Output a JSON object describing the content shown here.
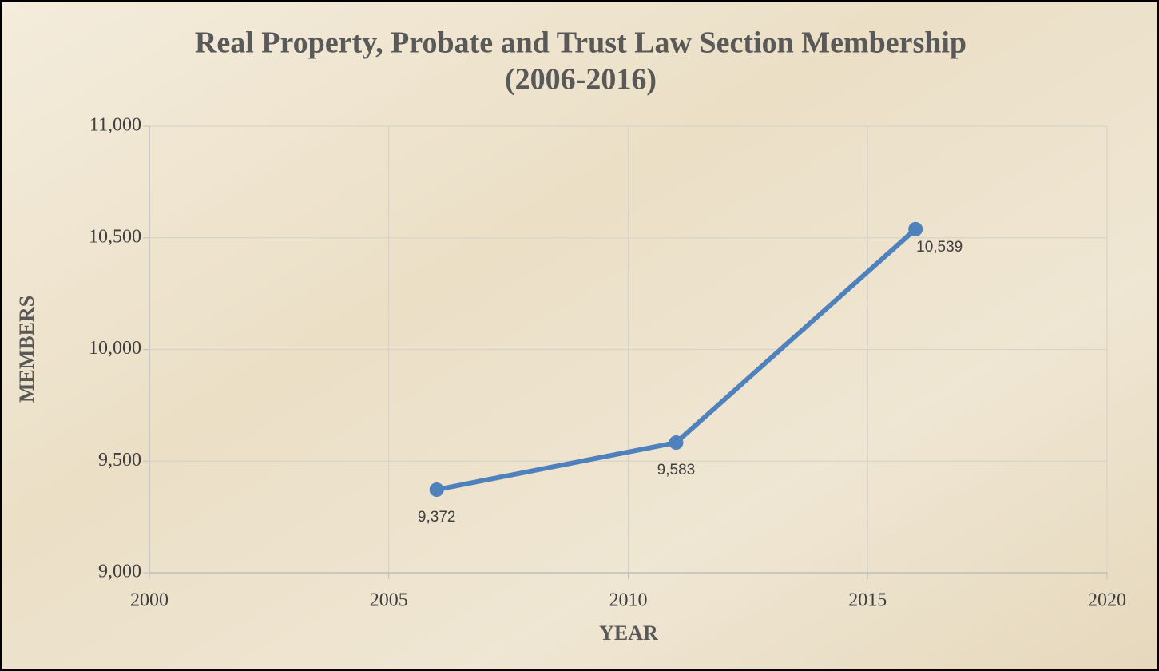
{
  "chart_data": {
    "type": "line",
    "title": [
      "Real Property, Probate and Trust Law Section Membership",
      "(2006-2016)"
    ],
    "x_label": "YEAR",
    "y_label": "MEMBERS",
    "x": [
      2006,
      2011,
      2016
    ],
    "values": [
      9372,
      9583,
      10539
    ],
    "value_labels": [
      "9,372",
      "9,583",
      "10,539"
    ],
    "color": "#4f81bd",
    "xlim": [
      2000,
      2020
    ],
    "xticks": [
      2000,
      2005,
      2010,
      2015,
      2020
    ],
    "ylim": [
      9000,
      11000
    ],
    "yticks": [
      {
        "value": 9000,
        "label": "9,000"
      },
      {
        "value": 9500,
        "label": "9,500"
      },
      {
        "value": 10000,
        "label": "10,000"
      },
      {
        "value": 10500,
        "label": "10,500"
      },
      {
        "value": 11000,
        "label": "11,000"
      }
    ],
    "grid": true
  }
}
